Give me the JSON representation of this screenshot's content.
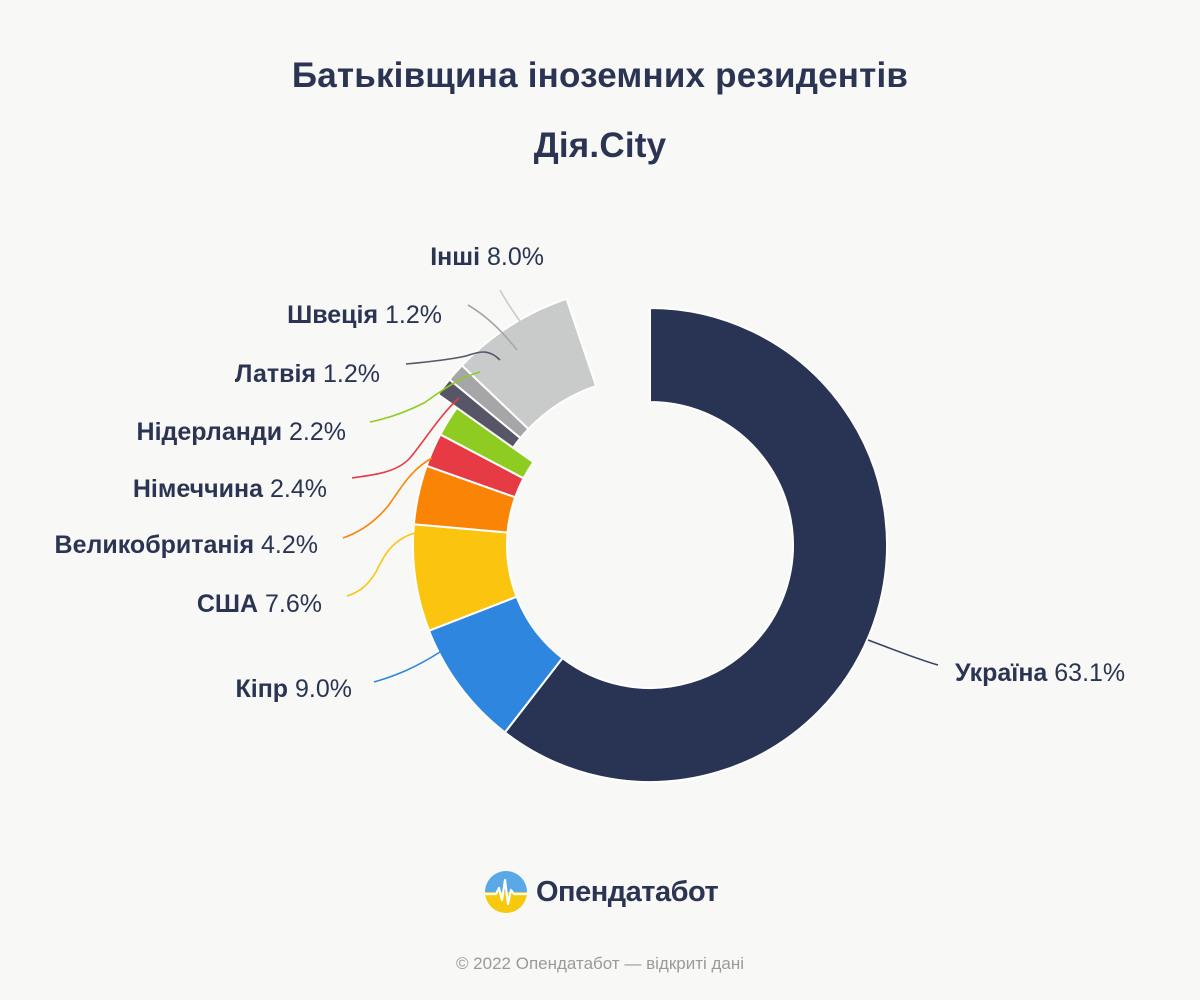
{
  "title": {
    "line1": "Батьківщина іноземних резидентів",
    "line2": "Дія.City"
  },
  "chart_data": {
    "type": "pie",
    "title": "Батьківщина іноземних резидентів Дія.City",
    "slices": [
      {
        "name": "Україна",
        "value": 63.1,
        "label": "63.1%",
        "color": "#293454"
      },
      {
        "name": "Кіпр",
        "value": 9.0,
        "label": "9.0%",
        "color": "#2e86de"
      },
      {
        "name": "США",
        "value": 7.6,
        "label": "7.6%",
        "color": "#fbc40f"
      },
      {
        "name": "Великобританія",
        "value": 4.2,
        "label": "4.2%",
        "color": "#fa8406"
      },
      {
        "name": "Німеччина",
        "value": 2.4,
        "label": "2.4%",
        "color": "#e63b44"
      },
      {
        "name": "Нідерланди",
        "value": 2.2,
        "label": "2.2%",
        "color": "#8fcc22"
      },
      {
        "name": "Латвія",
        "value": 1.2,
        "label": "1.2%",
        "color": "#565666"
      },
      {
        "name": "Швеція",
        "value": 1.2,
        "label": "1.2%",
        "color": "#a6a6a8"
      },
      {
        "name": "Інші",
        "value": 8.0,
        "label": "8.0%",
        "color": "#c9cbcb"
      }
    ]
  },
  "brand": {
    "name": "Опендатабот"
  },
  "footer": {
    "text": "© 2022 Опендатабот — відкриті дані"
  }
}
